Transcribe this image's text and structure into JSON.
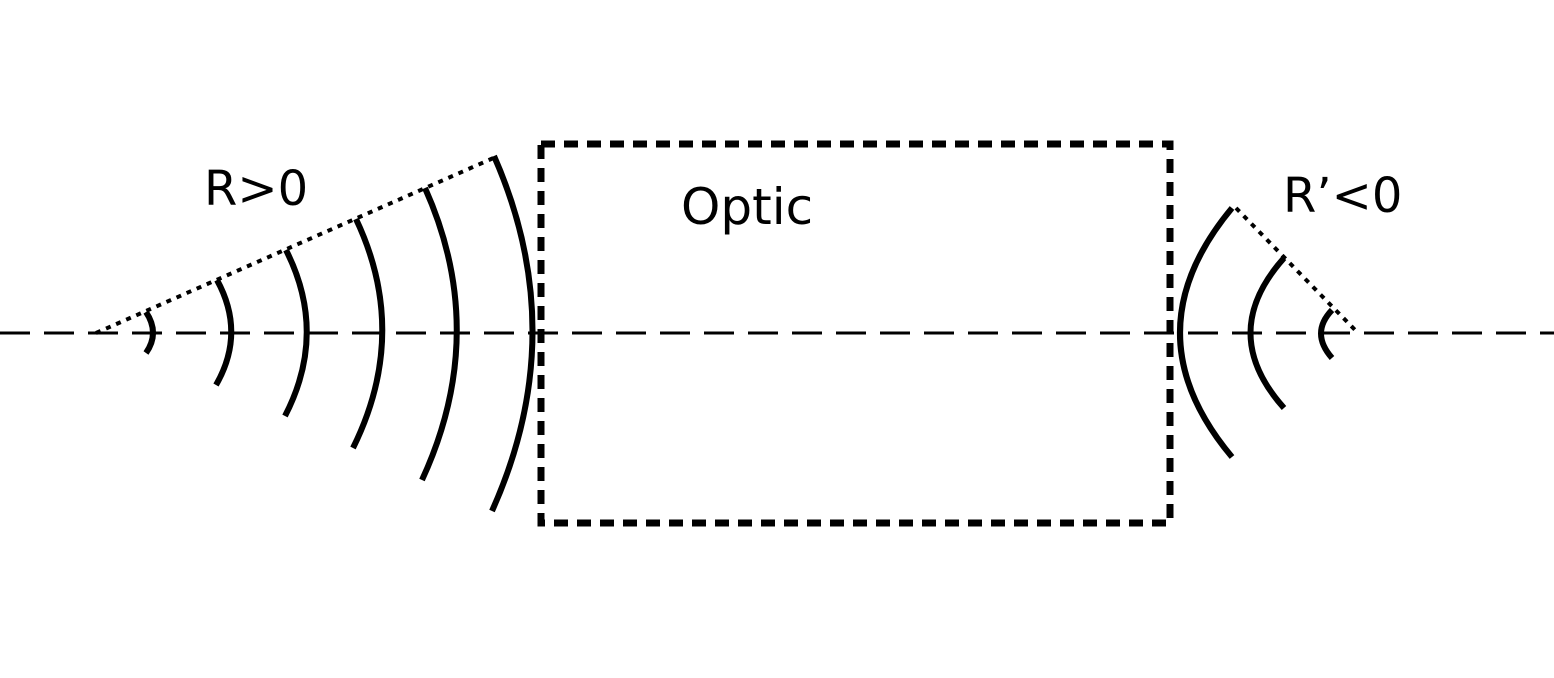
{
  "labels": {
    "incoming_radius": "R>0",
    "optic": "Optic",
    "outgoing_radius": "R’<0"
  },
  "colors": {
    "stroke": "#000000",
    "background": "#ffffff"
  }
}
